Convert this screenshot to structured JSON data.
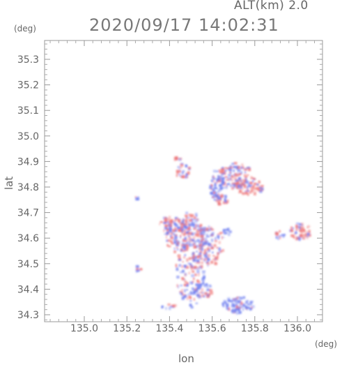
{
  "header": {
    "altitude": "ALT(km) 2.0",
    "timestamp": "2020/09/17 14:02:31"
  },
  "axes": {
    "lat_unit": "(deg)",
    "lon_unit": "(deg)",
    "lat_label": "lat",
    "lon_label": "lon",
    "lat_ticks": [
      "35.3",
      "35.2",
      "35.1",
      "35.0",
      "34.9",
      "34.8",
      "34.7",
      "34.6",
      "34.5",
      "34.4",
      "34.3"
    ],
    "lon_ticks": [
      "135.0",
      "135.2",
      "135.4",
      "135.6",
      "135.8",
      "136.0"
    ]
  },
  "colors": {
    "approaching": "#6f7ff0",
    "receding": "#f07a7a"
  }
}
